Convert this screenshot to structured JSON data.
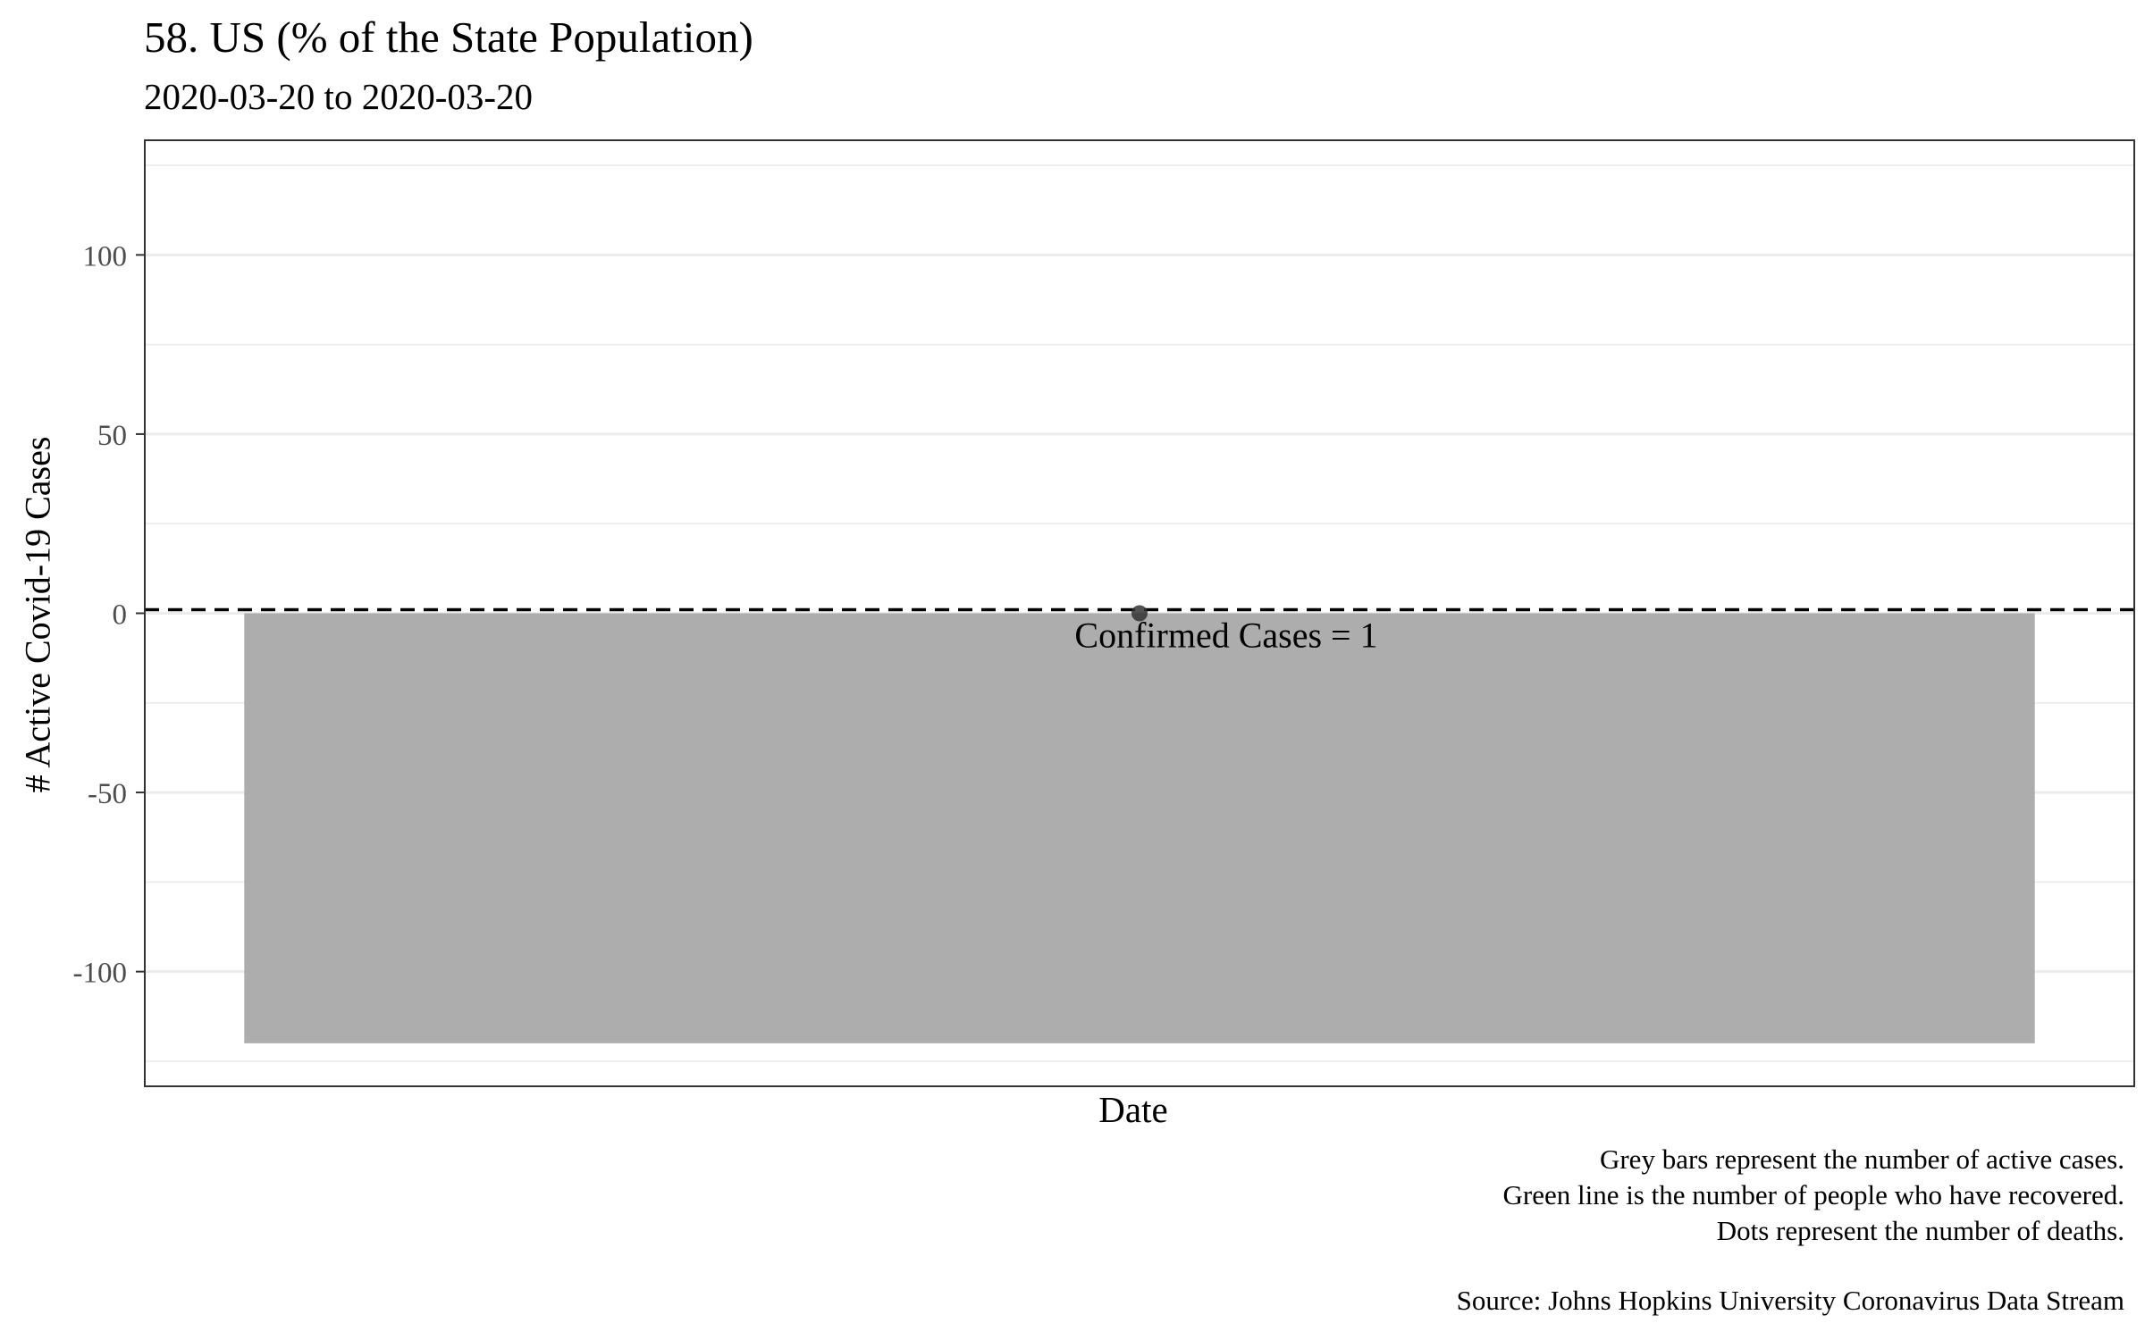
{
  "title": "58. US (% of the State Population)",
  "subtitle": "2020-03-20 to 2020-03-20",
  "caption": {
    "lines": [
      "Grey bars represent the number of active cases.",
      "Green line is the number of people who have recovered.",
      "Dots represent the number of deaths."
    ],
    "source": "Source: Johns Hopkins University Coronavirus Data Stream"
  },
  "colors": {
    "bar": "#a9a9a9",
    "grid": "#ebebeb",
    "reference_line": "#000000",
    "dot": "#333333"
  },
  "chart_data": {
    "type": "bar",
    "title": "58. US (% of the State Population)",
    "subtitle": "2020-03-20 to 2020-03-20",
    "xlabel": "Date",
    "ylabel": "# Active Covid-19 Cases",
    "ylim": [
      -132,
      132
    ],
    "yticks": [
      -100,
      -50,
      0,
      50,
      100
    ],
    "ytick_labels": [
      "-100",
      "-50",
      "0",
      "50",
      "100"
    ],
    "grid": true,
    "series": [
      {
        "type": "bar",
        "x": [
          "2020-03-20"
        ],
        "values": [
          -120
        ]
      },
      {
        "type": "point",
        "x": [
          "2020-03-20"
        ],
        "values": [
          0
        ]
      }
    ],
    "reference_line": {
      "y": 1,
      "style": "dashed"
    },
    "annotation": {
      "text": "Confirmed Cases = 1",
      "x": "2020-03-20",
      "y": -6
    }
  }
}
